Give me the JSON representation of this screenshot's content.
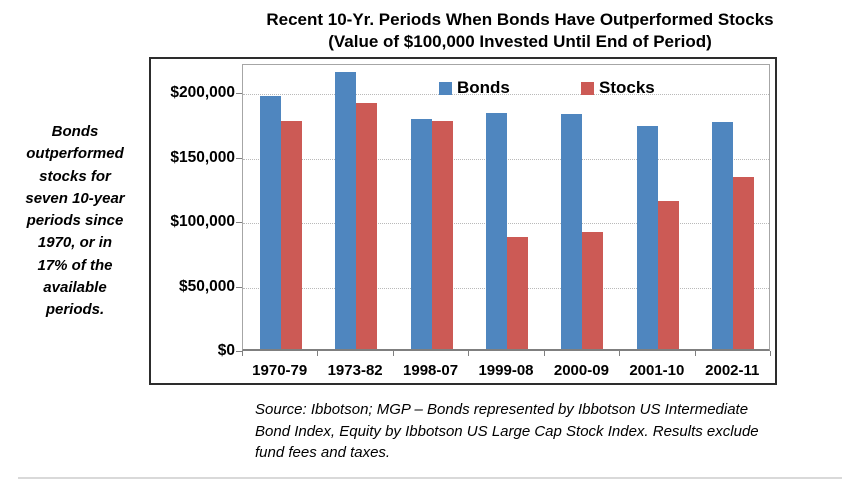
{
  "chart_data": {
    "type": "bar",
    "title": "Recent 10-Yr. Periods When Bonds Have Outperformed Stocks",
    "subtitle": "(Value of $100,000 Invested Until End of Period)",
    "categories": [
      "1970-79",
      "1973-82",
      "1998-07",
      "1999-08",
      "2000-09",
      "2001-10",
      "2002-11"
    ],
    "series": [
      {
        "name": "Bonds",
        "color": "#4F86BF",
        "values": [
          196000,
          215000,
          178000,
          183000,
          182000,
          173000,
          176000
        ]
      },
      {
        "name": "Stocks",
        "color": "#CC5A55",
        "values": [
          177000,
          191000,
          177000,
          87000,
          91000,
          115000,
          133000
        ]
      }
    ],
    "y_ticks": [
      {
        "value": 0,
        "label": "$0"
      },
      {
        "value": 50000,
        "label": "$50,000"
      },
      {
        "value": 100000,
        "label": "$100,000"
      },
      {
        "value": 150000,
        "label": "$150,000"
      },
      {
        "value": 200000,
        "label": "$200,000"
      }
    ],
    "ylim": [
      0,
      222500
    ],
    "grid": "horizontal-dotted",
    "legend_position": "top-inside"
  },
  "annotation": {
    "lines": [
      "Bonds",
      "outperformed",
      "stocks for",
      "seven 10-year",
      "periods since",
      "1970, or in",
      "17% of the",
      "available",
      "periods."
    ]
  },
  "source": {
    "lines": [
      "Source: Ibbotson; MGP – Bonds represented by Ibbotson US Intermediate",
      "Bond Index, Equity by Ibbotson US Large Cap Stock Index. Results exclude",
      "fund fees and taxes."
    ]
  }
}
